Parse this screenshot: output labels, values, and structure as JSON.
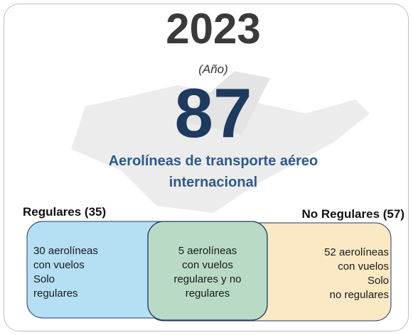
{
  "header": {
    "year": "2023",
    "year_label": "(Año)"
  },
  "total": {
    "value": "87",
    "label_lines": [
      "Aerolíneas de transporte aéreo",
      "internacional"
    ]
  },
  "sets": [
    {
      "title": "Regulares (35)",
      "lines": [
        "30 aerolíneas",
        "con vuelos",
        "Solo",
        "regulares"
      ]
    },
    {
      "title": "No Regulares (57)",
      "lines": [
        "52 aerolíneas",
        "con vuelos",
        "Solo",
        "no regulares"
      ]
    }
  ],
  "overlap": {
    "lines": [
      "5 aerolíneas",
      "con vuelos",
      "regulares y no",
      "regulares"
    ]
  }
}
